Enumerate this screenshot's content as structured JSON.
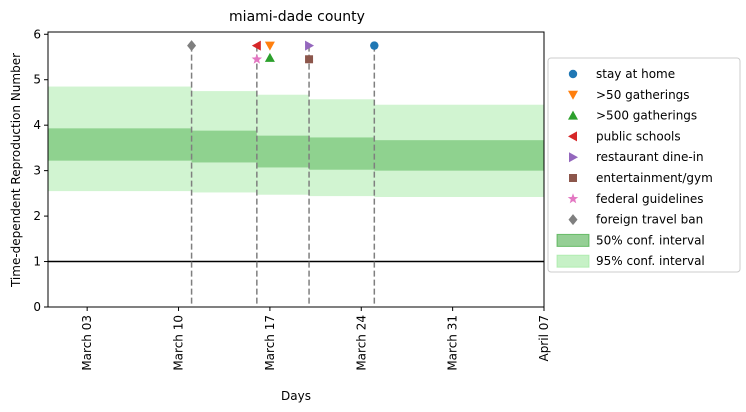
{
  "chart_data": {
    "type": "line",
    "title": "miami-dade county",
    "xlabel": "Days",
    "ylabel": "Time-dependent Reproduction Number",
    "x_range": [
      "2020-02-29",
      "2020-04-07"
    ],
    "ylim": [
      0,
      6.05
    ],
    "x_ticks": [
      {
        "date": "2020-03-03",
        "label": "March 03"
      },
      {
        "date": "2020-03-10",
        "label": "March 10"
      },
      {
        "date": "2020-03-17",
        "label": "March 17"
      },
      {
        "date": "2020-03-24",
        "label": "March 24"
      },
      {
        "date": "2020-03-31",
        "label": "March 31"
      },
      {
        "date": "2020-04-07",
        "label": "April 07"
      }
    ],
    "y_ticks": [
      0,
      1,
      2,
      3,
      4,
      5,
      6
    ],
    "grid": false,
    "legend_position": "right",
    "reference_line": {
      "y": 1,
      "color": "#000000"
    },
    "bands": [
      {
        "name": "95% conf. interval",
        "color": "#98e698",
        "opacity": 0.45,
        "segments": [
          {
            "start": "2020-02-29",
            "end": "2020-03-11",
            "lower": 2.55,
            "upper": 4.85
          },
          {
            "start": "2020-03-11",
            "end": "2020-03-16",
            "lower": 2.52,
            "upper": 4.75
          },
          {
            "start": "2020-03-16",
            "end": "2020-03-20",
            "lower": 2.47,
            "upper": 4.67
          },
          {
            "start": "2020-03-20",
            "end": "2020-03-25",
            "lower": 2.44,
            "upper": 4.57
          },
          {
            "start": "2020-03-25",
            "end": "2020-04-07",
            "lower": 2.42,
            "upper": 4.45
          }
        ]
      },
      {
        "name": "50% conf. interval",
        "color": "#2ca02c",
        "opacity": 0.4,
        "segments": [
          {
            "start": "2020-02-29",
            "end": "2020-03-11",
            "lower": 3.22,
            "upper": 3.93
          },
          {
            "start": "2020-03-11",
            "end": "2020-03-16",
            "lower": 3.18,
            "upper": 3.88
          },
          {
            "start": "2020-03-16",
            "end": "2020-03-20",
            "lower": 3.07,
            "upper": 3.77
          },
          {
            "start": "2020-03-20",
            "end": "2020-03-25",
            "lower": 3.02,
            "upper": 3.73
          },
          {
            "start": "2020-03-25",
            "end": "2020-04-07",
            "lower": 3.0,
            "upper": 3.67
          }
        ]
      }
    ],
    "event_lines": [
      "2020-03-11",
      "2020-03-16",
      "2020-03-20",
      "2020-03-25"
    ],
    "events": [
      {
        "name": "stay at home",
        "date": "2020-03-25",
        "y": 5.75,
        "marker": "circle",
        "color": "#1f77b4"
      },
      {
        "name": ">50 gatherings",
        "date": "2020-03-17",
        "y": 5.75,
        "marker": "triangle-down",
        "color": "#ff7f0e"
      },
      {
        "name": ">500 gatherings",
        "date": "2020-03-17",
        "y": 5.48,
        "marker": "triangle-up",
        "color": "#2ca02c"
      },
      {
        "name": "public schools",
        "date": "2020-03-16",
        "y": 5.75,
        "marker": "triangle-left",
        "color": "#d62728"
      },
      {
        "name": "restaurant dine-in",
        "date": "2020-03-20",
        "y": 5.75,
        "marker": "triangle-right",
        "color": "#9467bd"
      },
      {
        "name": "entertainment/gym",
        "date": "2020-03-20",
        "y": 5.45,
        "marker": "square",
        "color": "#8c564b"
      },
      {
        "name": "federal guidelines",
        "date": "2020-03-16",
        "y": 5.45,
        "marker": "star",
        "color": "#e377c2"
      },
      {
        "name": "foreign travel ban",
        "date": "2020-03-11",
        "y": 5.75,
        "marker": "diamond",
        "color": "#7f7f7f"
      }
    ]
  }
}
